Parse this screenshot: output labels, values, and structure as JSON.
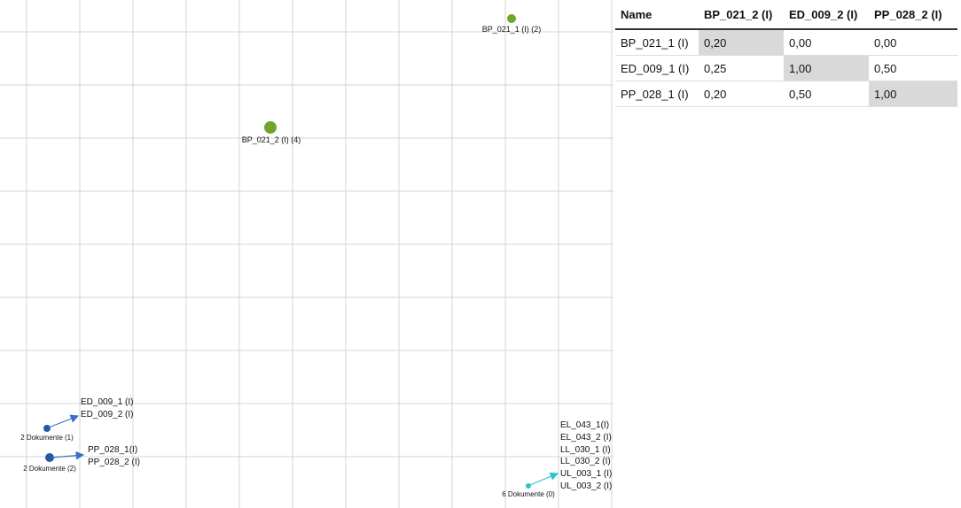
{
  "plot": {
    "points": [
      {
        "label": "BP_021_1 (I) (2)"
      },
      {
        "label": "BP_021_2 (I) (4)"
      }
    ],
    "groups": [
      {
        "label": "2 Dokumente (1)",
        "members": [
          "ED_009_1 (I)",
          "ED_009_2 (I)"
        ]
      },
      {
        "label": "2 Dokumente (2)",
        "members": [
          "PP_028_1(I)",
          "PP_028_2 (I)"
        ]
      },
      {
        "label": "6 Dokumente (0)",
        "members": [
          "EL_043_1(I)",
          "EL_043_2 (I)",
          "LL_030_1 (I)",
          "LL_030_2 (I)",
          "UL_003_1 (I)",
          "UL_003_2 (I)"
        ]
      }
    ]
  },
  "table": {
    "header": [
      "Name",
      "BP_021_2 (I)",
      "ED_009_2 (I)",
      "PP_028_2 (I)"
    ],
    "rows": [
      [
        "BP_021_1 (I)",
        "0,20",
        "0,00",
        "0,00"
      ],
      [
        "ED_009_1 (I)",
        "0,25",
        "1,00",
        "0,50"
      ],
      [
        "PP_028_1 (I)",
        "0,20",
        "0,50",
        "1,00"
      ]
    ]
  }
}
